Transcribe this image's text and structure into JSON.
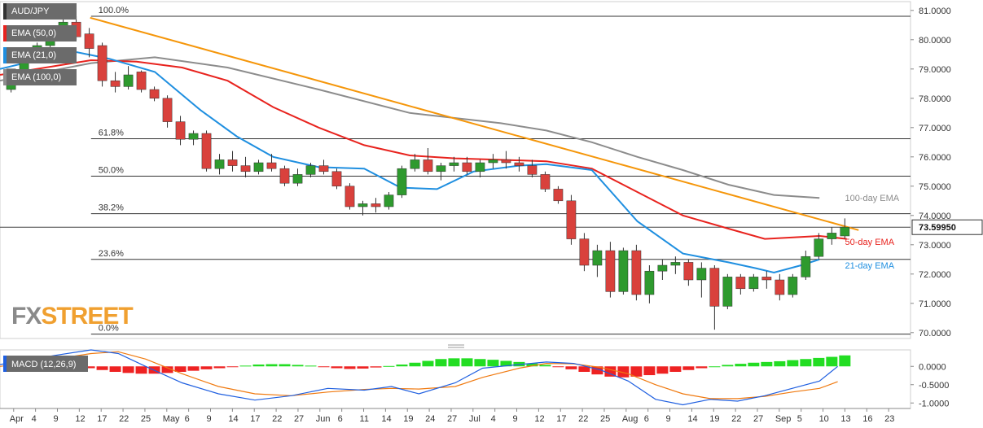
{
  "chart_data": [
    {
      "type": "candlestick",
      "title": "AUD/JPY",
      "yticks": [
        "81.0000",
        "80.0000",
        "79.0000",
        "78.0000",
        "77.0000",
        "76.0000",
        "75.0000",
        "74.0000",
        "73.0000",
        "72.0000",
        "71.0000",
        "70.0000"
      ],
      "ylim": [
        69.8,
        81.3
      ],
      "current_price": "73.59950",
      "fib_levels": [
        {
          "label": "100.0%",
          "price": 80.8
        },
        {
          "label": "61.8%",
          "price": 76.62
        },
        {
          "label": "50.0%",
          "price": 75.34
        },
        {
          "label": "38.2%",
          "price": 74.06
        },
        {
          "label": "23.6%",
          "price": 72.5
        },
        {
          "label": "0.0%",
          "price": 69.95
        }
      ],
      "legend": [
        "EMA (50,0)",
        "EMA (21,0)",
        "EMA (100,0)"
      ],
      "annotations": [
        "100-day EMA",
        "50-day EMA",
        "21-day EMA"
      ],
      "colors": {
        "ema50": "#e8231e",
        "ema21": "#1f8fe0",
        "ema100": "#8c8c8c",
        "trendline": "#f5960a",
        "up": "#2e9a2e",
        "down": "#d9413c"
      },
      "x_labels": [
        "Apr",
        "4",
        "9",
        "12",
        "17",
        "22",
        "25",
        "May",
        "6",
        "9",
        "14",
        "17",
        "22",
        "27",
        "Jun",
        "6",
        "11",
        "14",
        "19",
        "24",
        "27",
        "Jul",
        "4",
        "9",
        "12",
        "17",
        "22",
        "25",
        "Aug",
        "6",
        "9",
        "14",
        "19",
        "22",
        "27",
        "Sep",
        "5",
        "10",
        "13",
        "16",
        "23"
      ],
      "trendline": [
        {
          "x": 0.099,
          "y": 80.75
        },
        {
          "x": 0.943,
          "y": 73.5
        }
      ],
      "ema100": [
        [
          0.0,
          78.6
        ],
        [
          0.1,
          79.2
        ],
        [
          0.17,
          79.4
        ],
        [
          0.25,
          79.05
        ],
        [
          0.35,
          78.3
        ],
        [
          0.45,
          77.5
        ],
        [
          0.55,
          77.15
        ],
        [
          0.6,
          76.9
        ],
        [
          0.65,
          76.5
        ],
        [
          0.7,
          76.0
        ],
        [
          0.75,
          75.55
        ],
        [
          0.8,
          75.05
        ],
        [
          0.85,
          74.7
        ],
        [
          0.9,
          74.6
        ]
      ],
      "ema50": [
        [
          0.0,
          78.8
        ],
        [
          0.1,
          79.3
        ],
        [
          0.15,
          79.25
        ],
        [
          0.2,
          79.05
        ],
        [
          0.25,
          78.6
        ],
        [
          0.3,
          77.7
        ],
        [
          0.35,
          77.0
        ],
        [
          0.4,
          76.4
        ],
        [
          0.45,
          76.05
        ],
        [
          0.5,
          75.95
        ],
        [
          0.55,
          75.9
        ],
        [
          0.6,
          75.85
        ],
        [
          0.65,
          75.6
        ],
        [
          0.7,
          74.8
        ],
        [
          0.75,
          74.0
        ],
        [
          0.8,
          73.55
        ],
        [
          0.84,
          73.2
        ],
        [
          0.9,
          73.3
        ],
        [
          0.93,
          73.2
        ]
      ],
      "ema21": [
        [
          0.0,
          79.0
        ],
        [
          0.08,
          79.6
        ],
        [
          0.12,
          79.35
        ],
        [
          0.17,
          78.9
        ],
        [
          0.22,
          77.6
        ],
        [
          0.26,
          76.7
        ],
        [
          0.3,
          76.0
        ],
        [
          0.35,
          75.65
        ],
        [
          0.4,
          75.6
        ],
        [
          0.44,
          74.95
        ],
        [
          0.48,
          74.9
        ],
        [
          0.52,
          75.5
        ],
        [
          0.57,
          75.7
        ],
        [
          0.6,
          75.75
        ],
        [
          0.65,
          75.55
        ],
        [
          0.7,
          73.8
        ],
        [
          0.75,
          72.7
        ],
        [
          0.8,
          72.4
        ],
        [
          0.83,
          72.2
        ],
        [
          0.85,
          72.05
        ],
        [
          0.88,
          72.3
        ],
        [
          0.9,
          72.5
        ]
      ],
      "candles": [
        [
          78.3,
          79.0,
          78.2,
          79.0
        ],
        [
          78.8,
          79.6,
          78.7,
          79.5
        ],
        [
          79.5,
          79.9,
          79.2,
          79.8
        ],
        [
          79.8,
          80.3,
          79.6,
          80.2
        ],
        [
          80.2,
          80.7,
          80.1,
          80.6
        ],
        [
          80.6,
          80.8,
          80.0,
          80.1
        ],
        [
          80.2,
          80.4,
          79.4,
          79.7
        ],
        [
          79.8,
          79.9,
          78.4,
          78.6
        ],
        [
          78.6,
          78.9,
          78.2,
          78.4
        ],
        [
          78.4,
          79.1,
          78.3,
          78.8
        ],
        [
          78.9,
          78.95,
          78.2,
          78.3
        ],
        [
          78.3,
          78.4,
          77.9,
          78.0
        ],
        [
          78.0,
          78.1,
          77.0,
          77.2
        ],
        [
          77.2,
          77.4,
          76.4,
          76.6
        ],
        [
          76.6,
          76.9,
          76.4,
          76.8
        ],
        [
          76.8,
          76.9,
          75.5,
          75.6
        ],
        [
          75.6,
          76.1,
          75.4,
          75.9
        ],
        [
          75.9,
          76.2,
          75.5,
          75.7
        ],
        [
          75.7,
          76.0,
          75.3,
          75.5
        ],
        [
          75.5,
          75.9,
          75.4,
          75.8
        ],
        [
          75.8,
          76.1,
          75.5,
          75.6
        ],
        [
          75.6,
          75.7,
          75.0,
          75.1
        ],
        [
          75.1,
          75.6,
          75.0,
          75.4
        ],
        [
          75.4,
          75.8,
          75.3,
          75.7
        ],
        [
          75.7,
          75.9,
          75.4,
          75.5
        ],
        [
          75.5,
          75.6,
          74.9,
          75.0
        ],
        [
          75.0,
          75.1,
          74.2,
          74.3
        ],
        [
          74.3,
          74.5,
          74.0,
          74.4
        ],
        [
          74.4,
          74.6,
          74.1,
          74.3
        ],
        [
          74.3,
          74.8,
          74.2,
          74.7
        ],
        [
          74.7,
          75.7,
          74.6,
          75.6
        ],
        [
          75.6,
          76.1,
          75.5,
          75.9
        ],
        [
          75.9,
          76.3,
          75.4,
          75.5
        ],
        [
          75.5,
          75.8,
          75.2,
          75.7
        ],
        [
          75.7,
          76.0,
          75.5,
          75.8
        ],
        [
          75.8,
          76.0,
          75.4,
          75.5
        ],
        [
          75.5,
          75.9,
          75.3,
          75.8
        ],
        [
          75.8,
          76.1,
          75.6,
          75.9
        ],
        [
          75.9,
          76.2,
          75.6,
          75.8
        ],
        [
          75.8,
          76.0,
          75.5,
          75.7
        ],
        [
          75.7,
          75.9,
          75.3,
          75.4
        ],
        [
          75.4,
          75.5,
          74.8,
          74.9
        ],
        [
          74.9,
          75.0,
          74.4,
          74.5
        ],
        [
          74.5,
          74.7,
          73.0,
          73.2
        ],
        [
          73.2,
          73.4,
          72.1,
          72.3
        ],
        [
          72.3,
          73.0,
          71.9,
          72.8
        ],
        [
          72.8,
          73.1,
          71.2,
          71.4
        ],
        [
          71.4,
          72.9,
          71.3,
          72.8
        ],
        [
          72.8,
          73.0,
          71.1,
          71.3
        ],
        [
          71.3,
          72.3,
          71.0,
          72.1
        ],
        [
          72.1,
          72.5,
          71.8,
          72.3
        ],
        [
          72.3,
          72.6,
          72.0,
          72.4
        ],
        [
          72.4,
          72.5,
          71.6,
          71.8
        ],
        [
          71.8,
          72.4,
          71.2,
          72.2
        ],
        [
          72.2,
          72.3,
          70.1,
          70.9
        ],
        [
          70.9,
          72.0,
          70.8,
          71.9
        ],
        [
          71.9,
          72.0,
          71.3,
          71.5
        ],
        [
          71.5,
          72.0,
          71.4,
          71.9
        ],
        [
          71.9,
          72.1,
          71.5,
          71.8
        ],
        [
          71.8,
          72.0,
          71.1,
          71.3
        ],
        [
          71.3,
          72.0,
          71.2,
          71.9
        ],
        [
          71.9,
          72.8,
          71.8,
          72.6
        ],
        [
          72.6,
          73.4,
          72.5,
          73.2
        ],
        [
          73.2,
          73.6,
          73.0,
          73.4
        ],
        [
          73.3,
          73.9,
          73.2,
          73.6
        ]
      ]
    },
    {
      "type": "macd",
      "title": "MACD (12,26,9)",
      "yticks": [
        "0.0000",
        "-0.5000",
        "-1.0000"
      ],
      "ylim": [
        -1.15,
        0.45
      ],
      "colors": {
        "macd": "#1f5fe0",
        "signal": "#f07a10",
        "hist_pos": "#22dd22",
        "hist_neg": "#ee2222"
      },
      "macd": [
        [
          0.0,
          0.05
        ],
        [
          0.06,
          0.3
        ],
        [
          0.1,
          0.45
        ],
        [
          0.13,
          0.35
        ],
        [
          0.16,
          0.0
        ],
        [
          0.2,
          -0.45
        ],
        [
          0.24,
          -0.75
        ],
        [
          0.28,
          -0.92
        ],
        [
          0.32,
          -0.8
        ],
        [
          0.36,
          -0.6
        ],
        [
          0.4,
          -0.65
        ],
        [
          0.43,
          -0.55
        ],
        [
          0.46,
          -0.75
        ],
        [
          0.5,
          -0.45
        ],
        [
          0.53,
          -0.05
        ],
        [
          0.57,
          0.05
        ],
        [
          0.6,
          0.12
        ],
        [
          0.63,
          0.08
        ],
        [
          0.66,
          -0.1
        ],
        [
          0.69,
          -0.4
        ],
        [
          0.72,
          -0.9
        ],
        [
          0.75,
          -1.05
        ],
        [
          0.78,
          -0.9
        ],
        [
          0.81,
          -0.95
        ],
        [
          0.84,
          -0.8
        ],
        [
          0.87,
          -0.6
        ],
        [
          0.9,
          -0.4
        ],
        [
          0.92,
          0.0
        ]
      ],
      "signal": [
        [
          0.0,
          0.0
        ],
        [
          0.06,
          0.2
        ],
        [
          0.1,
          0.35
        ],
        [
          0.13,
          0.4
        ],
        [
          0.16,
          0.2
        ],
        [
          0.2,
          -0.2
        ],
        [
          0.24,
          -0.55
        ],
        [
          0.28,
          -0.75
        ],
        [
          0.32,
          -0.8
        ],
        [
          0.36,
          -0.7
        ],
        [
          0.4,
          -0.63
        ],
        [
          0.43,
          -0.6
        ],
        [
          0.46,
          -0.62
        ],
        [
          0.5,
          -0.55
        ],
        [
          0.53,
          -0.3
        ],
        [
          0.57,
          -0.05
        ],
        [
          0.6,
          0.08
        ],
        [
          0.63,
          0.07
        ],
        [
          0.66,
          -0.03
        ],
        [
          0.69,
          -0.2
        ],
        [
          0.72,
          -0.5
        ],
        [
          0.75,
          -0.75
        ],
        [
          0.78,
          -0.88
        ],
        [
          0.81,
          -0.88
        ],
        [
          0.84,
          -0.82
        ],
        [
          0.87,
          -0.7
        ],
        [
          0.9,
          -0.6
        ],
        [
          0.92,
          -0.42
        ]
      ],
      "histogram": [
        0.12,
        0.15,
        0.15,
        0.12,
        0.08,
        0.02,
        -0.05,
        -0.1,
        -0.15,
        -0.18,
        -0.2,
        -0.2,
        -0.18,
        -0.15,
        -0.12,
        -0.08,
        -0.05,
        -0.02,
        0.02,
        0.05,
        0.06,
        0.06,
        0.04,
        0.02,
        -0.02,
        -0.05,
        -0.07,
        -0.06,
        -0.03,
        0.01,
        0.05,
        0.1,
        0.15,
        0.2,
        0.22,
        0.22,
        0.2,
        0.18,
        0.15,
        0.12,
        0.08,
        0.04,
        -0.02,
        -0.08,
        -0.15,
        -0.22,
        -0.28,
        -0.3,
        -0.28,
        -0.24,
        -0.2,
        -0.15,
        -0.1,
        -0.05,
        0.0,
        0.04,
        0.07,
        0.1,
        0.12,
        0.14,
        0.17,
        0.2,
        0.23,
        0.26,
        0.3
      ]
    }
  ],
  "watermark": {
    "part1": "FX",
    "part2": "STREET"
  }
}
